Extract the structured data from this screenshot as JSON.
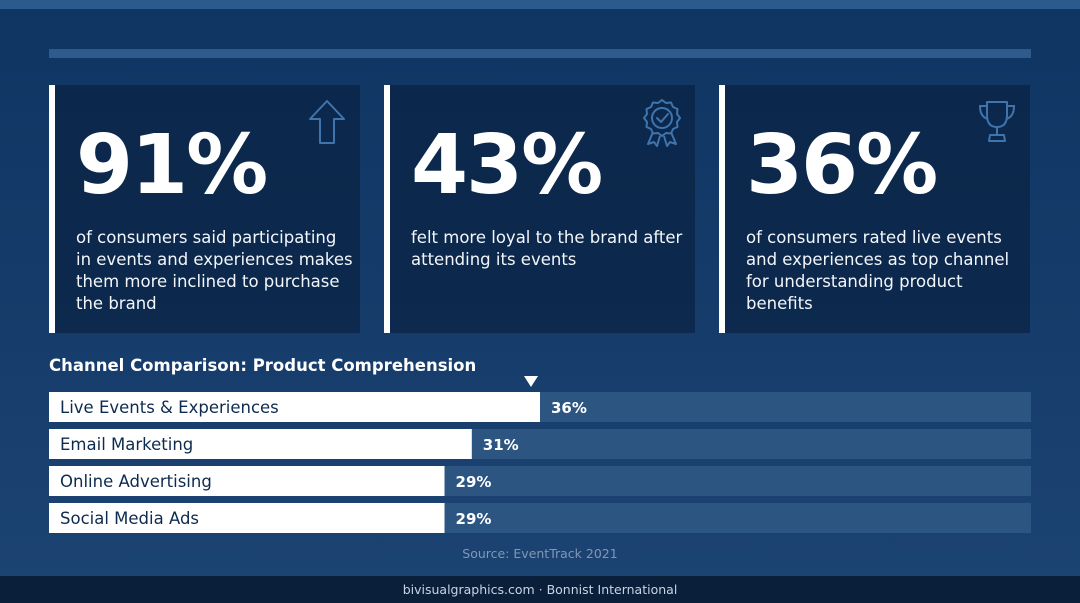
{
  "stats": [
    {
      "value": "91%",
      "description": "of consumers said participating in events and experiences makes them more inclined to purchase the brand",
      "icon": "arrow-up-icon"
    },
    {
      "value": "43%",
      "description": "felt more loyal to the brand after attending its events",
      "icon": "award-ribbon-icon"
    },
    {
      "value": "36%",
      "description": "of consumers rated live events and experiences as top channel for understanding product benefits",
      "icon": "trophy-icon"
    }
  ],
  "chart_data": {
    "type": "bar",
    "orientation": "horizontal",
    "title": "Channel Comparison: Product Comprehension",
    "categories": [
      "Live Events & Experiences",
      "Email Marketing",
      "Online Advertising",
      "Social Media Ads"
    ],
    "values": [
      36,
      31,
      29,
      29
    ],
    "value_labels": [
      "36%",
      "31%",
      "29%",
      "29%"
    ],
    "xlim": [
      0,
      72
    ],
    "highlight_index": 0,
    "grid": false,
    "legend": "none"
  },
  "source": "Source: EventTrack 2021",
  "footer": "bivisualgraphics.com · Bonnist International",
  "colors": {
    "background": "#163c6b",
    "bar_fill": "#ffffff",
    "bar_track": "#2c5582",
    "card": "#0a2242",
    "icon_stroke": "#3f74ad",
    "label_dark": "#0d2b4f"
  }
}
